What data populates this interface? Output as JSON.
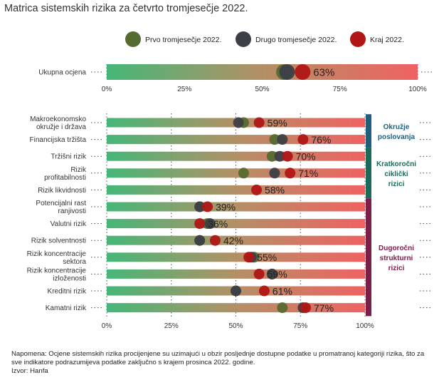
{
  "title": "Matrica sistemskih rizika za četvrto tromjesečje 2022.",
  "legend": [
    {
      "name": "Prvo tromjesečje 2022.",
      "color": "#556b2f"
    },
    {
      "name": "Drugo tromjesečje 2022.",
      "color": "#3d3f47"
    },
    {
      "name": "Kraj 2022.",
      "color": "#b01616"
    }
  ],
  "colors": {
    "scale_low": "#3cb371",
    "scale_mid": "#b08a5e",
    "scale_high": "#ee5a5a",
    "band_environment": "#1f5f7a",
    "band_cyclical": "#1a6b5a",
    "band_structural": "#7a1f48"
  },
  "chart_data": [
    {
      "type": "scatter",
      "x_unit": "%",
      "xlim": [
        0,
        100
      ],
      "ticks": [
        "0%",
        "25%",
        "50%",
        "75%",
        "100%"
      ],
      "categories": [
        "Ukupna ocjena"
      ],
      "series": [
        {
          "name": "Prvo tromjesečje 2022.",
          "values": [
            57
          ]
        },
        {
          "name": "Drugo tromjesečje 2022.",
          "values": [
            58
          ]
        },
        {
          "name": "Kraj 2022.",
          "values": [
            63
          ]
        }
      ],
      "value_labels": [
        "63%"
      ]
    },
    {
      "type": "scatter",
      "x_unit": "%",
      "xlim": [
        0,
        100
      ],
      "ticks": [
        "0%",
        "25%",
        "50%",
        "75%",
        "100%"
      ],
      "categories": [
        "Makroekonomsko okružje i država",
        "Financijska tržišta",
        "Tržišni rizik",
        "Rizik profitabilnosti",
        "Rizik likvidnosti",
        "Potencijalni rast ranjivosti",
        "Valutni rizik",
        "Rizik solventnosti",
        "Rizik koncentracije sektora",
        "Rizik koncentracije izloženosti",
        "Kreditni rizik",
        "Kamatni rizik"
      ],
      "series": [
        {
          "name": "Prvo tromjesečje 2022.",
          "values": [
            53,
            65,
            64,
            53,
            null,
            36,
            39,
            36,
            57,
            64,
            50,
            68
          ]
        },
        {
          "name": "Drugo tromjesečje 2022.",
          "values": [
            51,
            68,
            67,
            65,
            null,
            36,
            40,
            36,
            56,
            64,
            50,
            76
          ]
        },
        {
          "name": "Kraj 2022.",
          "values": [
            59,
            76,
            70,
            71,
            58,
            39,
            36,
            42,
            55,
            59,
            61,
            77
          ]
        }
      ],
      "value_labels": [
        "59%",
        "76%",
        "70%",
        "71%",
        "58%",
        "39%",
        "36%",
        "42%",
        "55%",
        "59%",
        "61%",
        "77%"
      ],
      "bands": [
        {
          "label": "Okružje poslovanja",
          "from": 0,
          "to": 1
        },
        {
          "label": "Kratkoročni ciklički rizici",
          "from": 2,
          "to": 4
        },
        {
          "label": "Dugoročni strukturni rizici",
          "from": 5,
          "to": 11
        }
      ]
    }
  ],
  "footnote": "Napomena: Ocjene sistemskih rizika procijenjene su uzimajući u obzir posljednje dostupne podatke u promatranoj kategoriji rizika, što za sve indikatore podrazumijeva podatke zaključno s krajem prosinca 2022. godine.",
  "source": "Izvor: Hanfa"
}
